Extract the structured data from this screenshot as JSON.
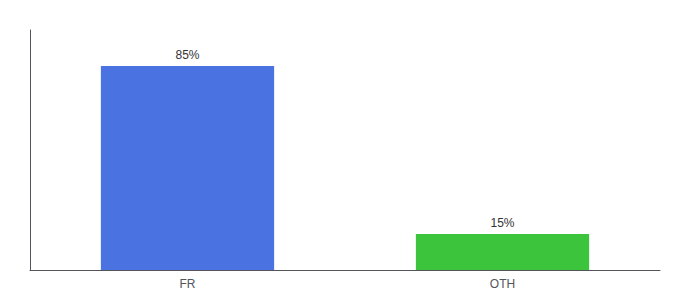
{
  "chart_data": {
    "type": "bar",
    "categories": [
      "FR",
      "OTH"
    ],
    "values": [
      85,
      15
    ],
    "value_labels": [
      "85%",
      "15%"
    ],
    "colors": [
      "#4a72e0",
      "#3dc43d"
    ],
    "ylim": [
      0,
      100
    ],
    "yticks": [],
    "data_labels": true,
    "tick_labels": "x",
    "grid": false
  }
}
